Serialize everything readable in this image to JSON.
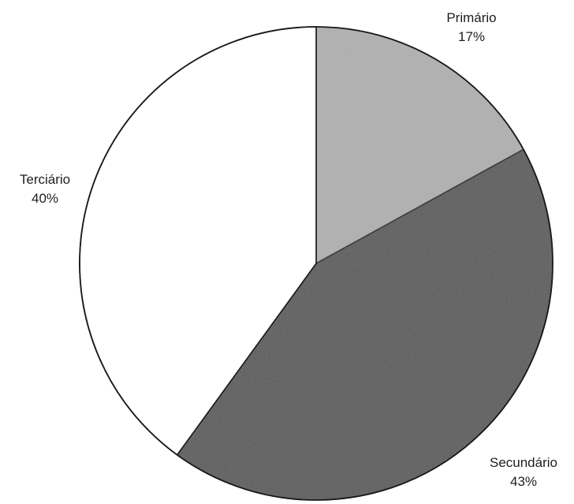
{
  "chart_data": {
    "type": "pie",
    "title": "",
    "start_angle_deg": 0,
    "direction": "clockwise",
    "slices": [
      {
        "label": "Primário",
        "value": 17,
        "value_label": "17%",
        "color": "#b0b0b0"
      },
      {
        "label": "Secundário",
        "value": 43,
        "value_label": "43%",
        "color": "#5a5a5a"
      },
      {
        "label": "Terciário",
        "value": 40,
        "value_label": "40%",
        "color": "#ffffff"
      }
    ]
  }
}
